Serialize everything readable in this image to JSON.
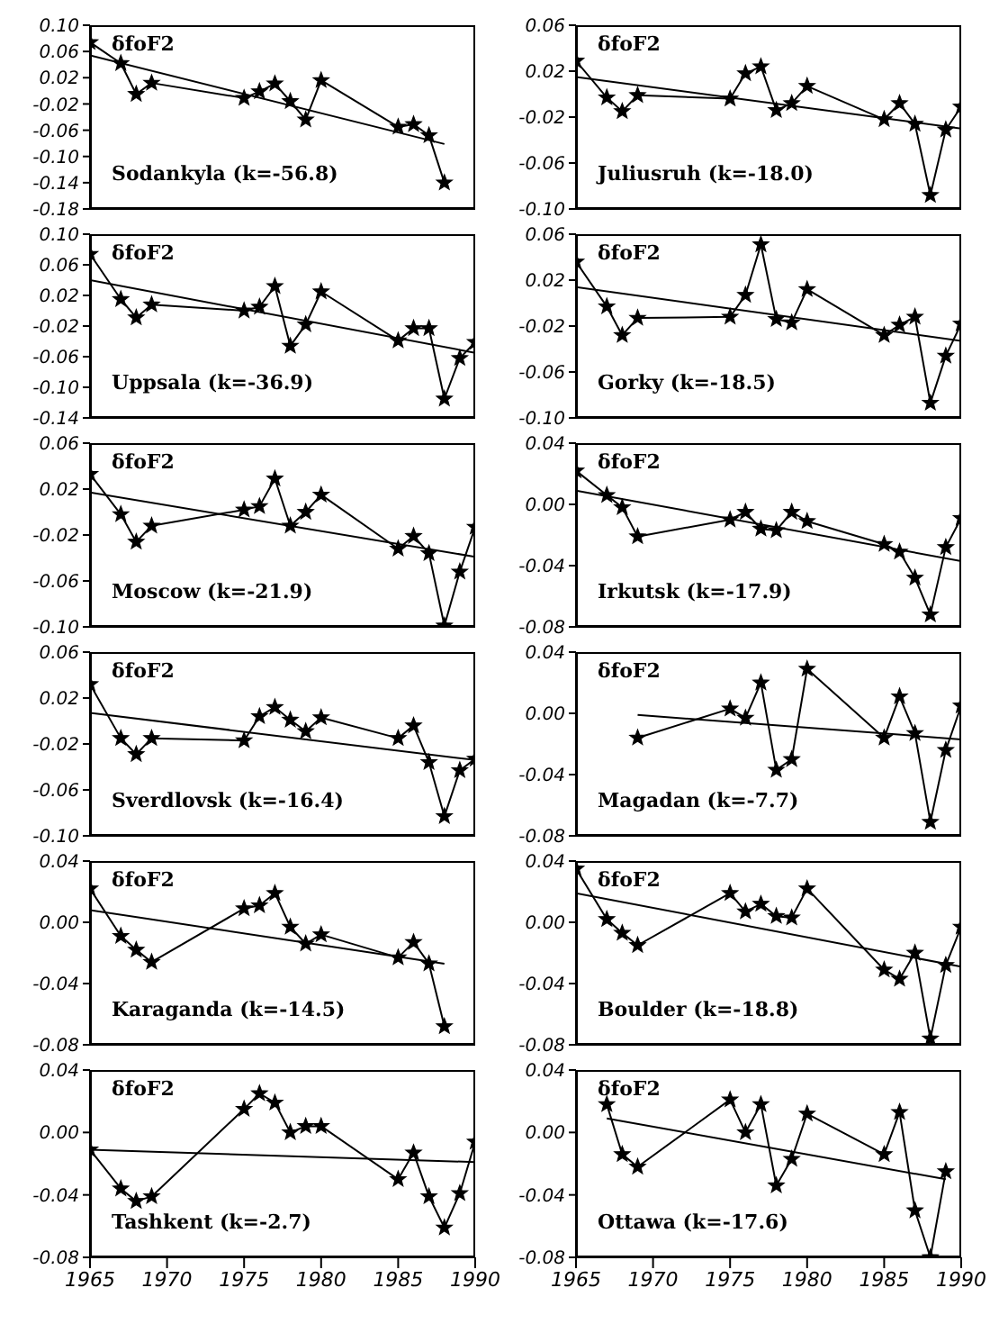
{
  "chart_data": [
    {
      "type": "line",
      "annotations": [
        "δfoF2",
        "Sodankyla (k=-56.8)"
      ],
      "xlim": [
        1965,
        1990
      ],
      "xticks": [
        1965,
        1970,
        1975,
        1980,
        1985,
        1990
      ],
      "ylim": [
        -0.18,
        0.1
      ],
      "yticks": [
        {
          "value": 0.1,
          "label": "0.10"
        },
        {
          "value": 0.06,
          "label": "0.06"
        },
        {
          "value": 0.02,
          "label": "0.02"
        },
        {
          "value": -0.02,
          "label": "-0.02"
        },
        {
          "value": -0.06,
          "label": "-0.06"
        },
        {
          "value": -0.1,
          "label": "-0.10"
        },
        {
          "value": -0.14,
          "label": "-0.14"
        },
        {
          "value": -0.18,
          "label": "-0.18"
        }
      ],
      "tick_labels": "y",
      "marker": "star",
      "series": [
        {
          "color": "#000000",
          "x": [
            1965,
            1967,
            1968,
            1969,
            1975,
            1976,
            1977,
            1978,
            1979,
            1980,
            1985,
            1986,
            1987,
            1988
          ],
          "values": [
            0.074,
            0.042,
            -0.005,
            0.012,
            -0.011,
            -0.001,
            0.011,
            -0.016,
            -0.044,
            0.016,
            -0.055,
            -0.051,
            -0.068,
            -0.14
          ]
        },
        {
          "type": "line",
          "marker": "none",
          "color": "#000000",
          "x": [
            1965,
            1988
          ],
          "values": [
            0.054,
            -0.081
          ]
        }
      ]
    },
    {
      "type": "line",
      "annotations": [
        "δfoF2",
        "Juliusruh (k=-18.0)"
      ],
      "xlim": [
        1965,
        1990
      ],
      "xticks": [
        1965,
        1970,
        1975,
        1980,
        1985,
        1990
      ],
      "ylim": [
        -0.1,
        0.06
      ],
      "yticks": [
        {
          "value": 0.06,
          "label": "0.06"
        },
        {
          "value": 0.02,
          "label": "0.02"
        },
        {
          "value": -0.02,
          "label": "-0.02"
        },
        {
          "value": -0.06,
          "label": "-0.06"
        },
        {
          "value": -0.1,
          "label": "-0.10"
        }
      ],
      "tick_labels": "y",
      "marker": "star",
      "series": [
        {
          "color": "#000000",
          "x": [
            1965,
            1967,
            1968,
            1969,
            1975,
            1976,
            1977,
            1978,
            1979,
            1980,
            1985,
            1986,
            1987,
            1988,
            1989,
            1990
          ],
          "values": [
            0.029,
            -0.003,
            -0.015,
            -0.001,
            -0.004,
            0.018,
            0.024,
            -0.014,
            -0.008,
            0.007,
            -0.022,
            -0.008,
            -0.026,
            -0.088,
            -0.031,
            -0.011
          ]
        },
        {
          "type": "line",
          "marker": "none",
          "color": "#000000",
          "x": [
            1965,
            1990
          ],
          "values": [
            0.015,
            -0.03
          ]
        }
      ]
    },
    {
      "type": "line",
      "annotations": [
        "δfoF2",
        "Uppsala (k=-36.9)"
      ],
      "xlim": [
        1965,
        1990
      ],
      "xticks": [
        1965,
        1970,
        1975,
        1980,
        1985,
        1990
      ],
      "ylim": [
        -0.14,
        0.1
      ],
      "yticks": [
        {
          "value": 0.1,
          "label": "0.10"
        },
        {
          "value": 0.06,
          "label": "0.06"
        },
        {
          "value": 0.02,
          "label": "0.02"
        },
        {
          "value": -0.02,
          "label": "-0.02"
        },
        {
          "value": -0.06,
          "label": "-0.06"
        },
        {
          "value": -0.1,
          "label": "-0.10"
        },
        {
          "value": -0.14,
          "label": "-0.14"
        }
      ],
      "tick_labels": "y",
      "marker": "star",
      "series": [
        {
          "color": "#000000",
          "x": [
            1965,
            1967,
            1968,
            1969,
            1975,
            1976,
            1977,
            1978,
            1979,
            1980,
            1985,
            1986,
            1987,
            1988,
            1989,
            1990
          ],
          "values": [
            0.074,
            0.015,
            -0.009,
            0.008,
            0.0,
            0.005,
            0.032,
            -0.046,
            -0.018,
            0.025,
            -0.039,
            -0.023,
            -0.023,
            -0.115,
            -0.062,
            -0.041
          ]
        },
        {
          "type": "line",
          "marker": "none",
          "color": "#000000",
          "x": [
            1965,
            1990
          ],
          "values": [
            0.04,
            -0.055
          ]
        }
      ]
    },
    {
      "type": "line",
      "annotations": [
        "δfoF2",
        "Gorky (k=-18.5)"
      ],
      "xlim": [
        1965,
        1990
      ],
      "xticks": [
        1965,
        1970,
        1975,
        1980,
        1985,
        1990
      ],
      "ylim": [
        -0.1,
        0.06
      ],
      "yticks": [
        {
          "value": 0.06,
          "label": "0.06"
        },
        {
          "value": 0.02,
          "label": "0.02"
        },
        {
          "value": -0.02,
          "label": "-0.02"
        },
        {
          "value": -0.06,
          "label": "-0.06"
        },
        {
          "value": -0.1,
          "label": "-0.10"
        }
      ],
      "tick_labels": "y",
      "marker": "star",
      "series": [
        {
          "color": "#000000",
          "x": [
            1965,
            1967,
            1968,
            1969,
            1975,
            1976,
            1977,
            1978,
            1979,
            1980,
            1985,
            1986,
            1987,
            1988,
            1989,
            1990
          ],
          "values": [
            0.036,
            -0.003,
            -0.028,
            -0.013,
            -0.012,
            0.007,
            0.051,
            -0.014,
            -0.017,
            0.012,
            -0.028,
            -0.019,
            -0.012,
            -0.087,
            -0.046,
            -0.018
          ]
        },
        {
          "type": "line",
          "marker": "none",
          "color": "#000000",
          "x": [
            1965,
            1990
          ],
          "values": [
            0.014,
            -0.033
          ]
        }
      ]
    },
    {
      "type": "line",
      "annotations": [
        "δfoF2",
        "Moscow (k=-21.9)"
      ],
      "xlim": [
        1965,
        1990
      ],
      "xticks": [
        1965,
        1970,
        1975,
        1980,
        1985,
        1990
      ],
      "ylim": [
        -0.1,
        0.06
      ],
      "yticks": [
        {
          "value": 0.06,
          "label": "0.06"
        },
        {
          "value": 0.02,
          "label": "0.02"
        },
        {
          "value": -0.02,
          "label": "-0.02"
        },
        {
          "value": -0.06,
          "label": "-0.06"
        },
        {
          "value": -0.1,
          "label": "-0.10"
        }
      ],
      "tick_labels": "y",
      "marker": "star",
      "series": [
        {
          "color": "#000000",
          "x": [
            1965,
            1967,
            1968,
            1969,
            1975,
            1976,
            1977,
            1978,
            1979,
            1980,
            1985,
            1986,
            1987,
            1988,
            1989,
            1990
          ],
          "values": [
            0.033,
            -0.002,
            -0.026,
            -0.012,
            0.002,
            0.005,
            0.029,
            -0.012,
            0.0,
            0.015,
            -0.032,
            -0.021,
            -0.036,
            -0.099,
            -0.052,
            -0.013
          ]
        },
        {
          "type": "line",
          "marker": "none",
          "color": "#000000",
          "x": [
            1965,
            1990
          ],
          "values": [
            0.017,
            -0.039
          ]
        }
      ]
    },
    {
      "type": "line",
      "annotations": [
        "δfoF2",
        "Irkutsk (k=-17.9)"
      ],
      "xlim": [
        1965,
        1990
      ],
      "xticks": [
        1965,
        1970,
        1975,
        1980,
        1985,
        1990
      ],
      "ylim": [
        -0.08,
        0.04
      ],
      "yticks": [
        {
          "value": 0.04,
          "label": "0.04"
        },
        {
          "value": 0.0,
          "label": "0.00"
        },
        {
          "value": -0.04,
          "label": "-0.04"
        },
        {
          "value": -0.08,
          "label": "-0.08"
        }
      ],
      "tick_labels": "y",
      "marker": "star",
      "series": [
        {
          "color": "#000000",
          "x": [
            1965,
            1967,
            1968,
            1969,
            1975,
            1976,
            1977,
            1978,
            1979,
            1980,
            1985,
            1986,
            1987,
            1988,
            1989,
            1990
          ],
          "values": [
            0.022,
            0.006,
            -0.002,
            -0.021,
            -0.01,
            -0.005,
            -0.016,
            -0.017,
            -0.005,
            -0.011,
            -0.026,
            -0.031,
            -0.048,
            -0.072,
            -0.028,
            -0.009
          ]
        },
        {
          "type": "line",
          "marker": "none",
          "color": "#000000",
          "x": [
            1965,
            1990
          ],
          "values": [
            0.009,
            -0.037
          ]
        }
      ]
    },
    {
      "type": "line",
      "annotations": [
        "δfoF2",
        "Sverdlovsk (k=-16.4)"
      ],
      "xlim": [
        1965,
        1990
      ],
      "xticks": [
        1965,
        1970,
        1975,
        1980,
        1985,
        1990
      ],
      "ylim": [
        -0.1,
        0.06
      ],
      "yticks": [
        {
          "value": 0.06,
          "label": "0.06"
        },
        {
          "value": 0.02,
          "label": "0.02"
        },
        {
          "value": -0.02,
          "label": "-0.02"
        },
        {
          "value": -0.06,
          "label": "-0.06"
        },
        {
          "value": -0.1,
          "label": "-0.10"
        }
      ],
      "tick_labels": "y",
      "marker": "star",
      "series": [
        {
          "color": "#000000",
          "x": [
            1965,
            1967,
            1968,
            1969,
            1975,
            1976,
            1977,
            1978,
            1979,
            1980,
            1985,
            1986,
            1987,
            1988,
            1989,
            1990
          ],
          "values": [
            0.032,
            -0.015,
            -0.029,
            -0.015,
            -0.017,
            0.004,
            0.012,
            0.001,
            -0.009,
            0.003,
            -0.015,
            -0.004,
            -0.036,
            -0.083,
            -0.043,
            -0.033
          ]
        },
        {
          "type": "line",
          "marker": "none",
          "color": "#000000",
          "x": [
            1965,
            1990
          ],
          "values": [
            0.007,
            -0.034
          ]
        }
      ]
    },
    {
      "type": "line",
      "annotations": [
        "δfoF2",
        "Magadan (k=-7.7)"
      ],
      "xlim": [
        1965,
        1990
      ],
      "xticks": [
        1965,
        1970,
        1975,
        1980,
        1985,
        1990
      ],
      "ylim": [
        -0.08,
        0.04
      ],
      "yticks": [
        {
          "value": 0.04,
          "label": "0.04"
        },
        {
          "value": 0.0,
          "label": "0.00"
        },
        {
          "value": -0.04,
          "label": "-0.04"
        },
        {
          "value": -0.08,
          "label": "-0.08"
        }
      ],
      "tick_labels": "y",
      "marker": "star",
      "series": [
        {
          "color": "#000000",
          "x": [
            1969,
            1975,
            1976,
            1977,
            1978,
            1979,
            1980,
            1985,
            1986,
            1987,
            1988,
            1989,
            1990
          ],
          "values": [
            -0.016,
            0.003,
            -0.003,
            0.02,
            -0.037,
            -0.03,
            0.029,
            -0.016,
            0.011,
            -0.013,
            -0.071,
            -0.024,
            0.005
          ]
        },
        {
          "type": "line",
          "marker": "none",
          "color": "#000000",
          "x": [
            1969,
            1990
          ],
          "values": [
            -0.001,
            -0.017
          ]
        }
      ]
    },
    {
      "type": "line",
      "annotations": [
        "δfoF2",
        "Karaganda (k=-14.5)"
      ],
      "xlim": [
        1965,
        1990
      ],
      "xticks": [
        1965,
        1970,
        1975,
        1980,
        1985,
        1990
      ],
      "ylim": [
        -0.08,
        0.04
      ],
      "yticks": [
        {
          "value": 0.04,
          "label": "0.04"
        },
        {
          "value": 0.0,
          "label": "0.00"
        },
        {
          "value": -0.04,
          "label": "-0.04"
        },
        {
          "value": -0.08,
          "label": "-0.08"
        }
      ],
      "tick_labels": "y",
      "marker": "star",
      "series": [
        {
          "color": "#000000",
          "x": [
            1965,
            1967,
            1968,
            1969,
            1975,
            1976,
            1977,
            1978,
            1979,
            1980,
            1985,
            1986,
            1987,
            1988
          ],
          "values": [
            0.022,
            -0.009,
            -0.018,
            -0.026,
            0.009,
            0.011,
            0.019,
            -0.003,
            -0.014,
            -0.008,
            -0.023,
            -0.013,
            -0.027,
            -0.068
          ]
        },
        {
          "type": "line",
          "marker": "none",
          "color": "#000000",
          "x": [
            1965,
            1988
          ],
          "values": [
            0.008,
            -0.027
          ]
        }
      ]
    },
    {
      "type": "line",
      "annotations": [
        "δfoF2",
        "Boulder (k=-18.8)"
      ],
      "xlim": [
        1965,
        1990
      ],
      "xticks": [
        1965,
        1970,
        1975,
        1980,
        1985,
        1990
      ],
      "ylim": [
        -0.08,
        0.04
      ],
      "yticks": [
        {
          "value": 0.04,
          "label": "0.04"
        },
        {
          "value": 0.0,
          "label": "0.00"
        },
        {
          "value": -0.04,
          "label": "-0.04"
        },
        {
          "value": -0.08,
          "label": "-0.08"
        }
      ],
      "tick_labels": "y",
      "marker": "star",
      "series": [
        {
          "color": "#000000",
          "x": [
            1965,
            1967,
            1968,
            1969,
            1975,
            1976,
            1977,
            1978,
            1979,
            1980,
            1985,
            1986,
            1987,
            1988,
            1989,
            1990
          ],
          "values": [
            0.035,
            0.002,
            -0.007,
            -0.015,
            0.019,
            0.007,
            0.012,
            0.004,
            0.003,
            0.022,
            -0.031,
            -0.037,
            -0.02,
            -0.076,
            -0.028,
            -0.003
          ]
        },
        {
          "type": "line",
          "marker": "none",
          "color": "#000000",
          "x": [
            1965,
            1990
          ],
          "values": [
            0.019,
            -0.029
          ]
        }
      ]
    },
    {
      "type": "line",
      "annotations": [
        "δfoF2",
        "Tashkent (k=-2.7)"
      ],
      "xlim": [
        1965,
        1990
      ],
      "xticks": [
        1965,
        1970,
        1975,
        1980,
        1985,
        1990
      ],
      "ylim": [
        -0.08,
        0.04
      ],
      "yticks": [
        {
          "value": 0.04,
          "label": "0.04"
        },
        {
          "value": 0.0,
          "label": "0.00"
        },
        {
          "value": -0.04,
          "label": "-0.04"
        },
        {
          "value": -0.08,
          "label": "-0.08"
        }
      ],
      "marker": "star",
      "series": [
        {
          "color": "#000000",
          "x": [
            1965,
            1967,
            1968,
            1969,
            1975,
            1976,
            1977,
            1978,
            1979,
            1980,
            1985,
            1986,
            1987,
            1988,
            1989,
            1990
          ],
          "values": [
            -0.011,
            -0.036,
            -0.044,
            -0.041,
            0.015,
            0.025,
            0.019,
            0.0,
            0.004,
            0.004,
            -0.03,
            -0.013,
            -0.041,
            -0.061,
            -0.039,
            -0.006
          ]
        },
        {
          "type": "line",
          "marker": "none",
          "color": "#000000",
          "x": [
            1965,
            1990
          ],
          "values": [
            -0.011,
            -0.019
          ]
        }
      ]
    },
    {
      "type": "line",
      "annotations": [
        "δfoF2",
        "Ottawa (k=-17.6)"
      ],
      "xlim": [
        1965,
        1990
      ],
      "xticks": [
        1965,
        1970,
        1975,
        1980,
        1985,
        1990
      ],
      "ylim": [
        -0.08,
        0.04
      ],
      "yticks": [
        {
          "value": 0.04,
          "label": "0.04"
        },
        {
          "value": 0.0,
          "label": "0.00"
        },
        {
          "value": -0.04,
          "label": "-0.04"
        },
        {
          "value": -0.08,
          "label": "-0.08"
        }
      ],
      "marker": "star",
      "series": [
        {
          "color": "#000000",
          "x": [
            1967,
            1968,
            1969,
            1975,
            1976,
            1977,
            1978,
            1979,
            1980,
            1985,
            1986,
            1987,
            1988,
            1989
          ],
          "values": [
            0.018,
            -0.014,
            -0.022,
            0.021,
            0.0,
            0.018,
            -0.034,
            -0.017,
            0.012,
            -0.014,
            0.013,
            -0.05,
            -0.08,
            -0.025
          ]
        },
        {
          "type": "line",
          "marker": "none",
          "color": "#000000",
          "x": [
            1967,
            1989
          ],
          "values": [
            0.009,
            -0.03
          ]
        }
      ]
    }
  ]
}
